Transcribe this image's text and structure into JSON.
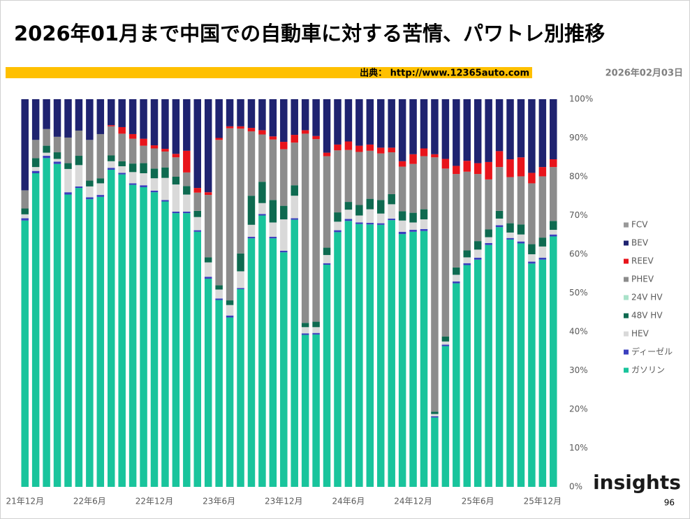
{
  "chart_data": {
    "type": "stacked_bar",
    "title": "2026年01月まで中国での自動車に対する苦情、パワトレ別推移",
    "categories": [
      "21年12月",
      null,
      null,
      null,
      null,
      null,
      "22年6月",
      null,
      null,
      null,
      null,
      null,
      "22年12月",
      null,
      null,
      null,
      null,
      null,
      "23年6月",
      null,
      null,
      null,
      null,
      null,
      "23年12月",
      null,
      null,
      null,
      null,
      null,
      "24年6月",
      null,
      null,
      null,
      null,
      null,
      "24年12月",
      null,
      null,
      null,
      null,
      null,
      "25年6月",
      null,
      null,
      null,
      null,
      null,
      "25年12月",
      null
    ],
    "series": [
      {
        "name": "ガソリン",
        "color": "#19c49c",
        "values": [
          68.7,
          80.9,
          84.8,
          83.3,
          75.4,
          77.1,
          74.2,
          74.8,
          81.8,
          80.6,
          77.9,
          77.3,
          76.0,
          73.6,
          70.6,
          70.6,
          65.8,
          53.7,
          48.2,
          43.7,
          51.0,
          64.1,
          70.0,
          64.1,
          60.5,
          68.9,
          39.2,
          39.3,
          57.3,
          65.7,
          68.6,
          67.8,
          67.7,
          67.6,
          68.8,
          65.2,
          65.8,
          66.0,
          17.9,
          36.3,
          52.5,
          57.2,
          58.6,
          62.4,
          67.0,
          63.8,
          62.8,
          57.6,
          58.6,
          64.6
        ]
      },
      {
        "name": "ディーゼル",
        "color": "#3b3fbe",
        "values": [
          0.6,
          0.6,
          0.6,
          0.6,
          0.6,
          0.4,
          0.5,
          0.5,
          0.5,
          0.4,
          0.4,
          0.5,
          0.4,
          0.4,
          0.4,
          0.4,
          0.4,
          0.5,
          0.4,
          0.5,
          0.3,
          0.4,
          0.4,
          0.4,
          0.4,
          0.4,
          0.4,
          0.4,
          0.4,
          0.5,
          0.5,
          0.4,
          0.4,
          0.4,
          0.4,
          0.6,
          0.5,
          0.5,
          0.3,
          0.4,
          0.5,
          0.5,
          0.5,
          0.5,
          0.5,
          0.4,
          0.5,
          0.5,
          0.5,
          0.5
        ]
      },
      {
        "name": "HEV",
        "color": "#d9d9d9",
        "values": [
          1.0,
          1.0,
          0.8,
          0.7,
          6.0,
          5.5,
          2.8,
          3.0,
          1.7,
          1.7,
          2.9,
          3.1,
          3.2,
          5.7,
          7.0,
          4.4,
          3.4,
          3.7,
          2.3,
          2.7,
          4.3,
          3.1,
          2.8,
          3.7,
          8.1,
          5.8,
          1.6,
          1.5,
          2.1,
          2.2,
          2.4,
          1.8,
          3.5,
          2.5,
          3.7,
          2.9,
          1.9,
          2.5,
          0.6,
          0.8,
          1.7,
          1.5,
          2.1,
          1.5,
          1.7,
          1.4,
          1.8,
          1.9,
          2.9,
          1.2
        ]
      },
      {
        "name": "48V HV",
        "color": "#0e6a50",
        "values": [
          1.5,
          2.3,
          1.8,
          1.7,
          1.5,
          2.4,
          1.5,
          1.3,
          1.5,
          1.3,
          2.2,
          2.6,
          2.5,
          2.7,
          2.0,
          2.2,
          1.6,
          1.3,
          1.1,
          1.2,
          4.6,
          7.5,
          5.5,
          5.8,
          3.5,
          2.7,
          1.1,
          1.4,
          1.9,
          2.4,
          2.0,
          2.7,
          2.7,
          3.5,
          2.6,
          2.4,
          2.5,
          2.6,
          0.6,
          1.3,
          1.9,
          1.8,
          2.2,
          2.0,
          2.0,
          2.4,
          2.6,
          2.6,
          2.3,
          2.3
        ]
      },
      {
        "name": "24V HV",
        "color": "#a9e2c9",
        "values": [
          0,
          0,
          0,
          0,
          0,
          0,
          0,
          0,
          0,
          0,
          0,
          0,
          0,
          0,
          0,
          0,
          0,
          0,
          0,
          0,
          0,
          0,
          0,
          0,
          0,
          0,
          0,
          0,
          0,
          0,
          0,
          0,
          0,
          0,
          0,
          0,
          0,
          0,
          0,
          0,
          0,
          0,
          0,
          0,
          0,
          0,
          0,
          0,
          0,
          0
        ]
      },
      {
        "name": "PHEV",
        "color": "#8c8c8c",
        "values": [
          4.7,
          4.7,
          4.3,
          4.0,
          6.6,
          6.5,
          10.5,
          11.4,
          7.5,
          7.1,
          6.4,
          4.5,
          5.2,
          4.1,
          5.0,
          3.5,
          4.7,
          16.1,
          37.5,
          44.4,
          32.2,
          16.6,
          12.2,
          15.6,
          14.6,
          11.0,
          48.8,
          47.1,
          23.6,
          16.0,
          13.4,
          13.7,
          12.4,
          12.0,
          10.8,
          11.5,
          12.6,
          13.7,
          65.6,
          43.3,
          24.1,
          20.3,
          17.3,
          12.9,
          11.3,
          11.9,
          12.4,
          15.7,
          15.8,
          13.9
        ]
      },
      {
        "name": "REEV",
        "color": "#e8141b",
        "values": [
          0,
          0,
          0,
          0,
          0,
          0,
          0,
          0,
          0.3,
          1.7,
          1.2,
          1.8,
          0.8,
          0.7,
          0.9,
          5.6,
          1.2,
          0.7,
          0.5,
          0.5,
          0.6,
          0.9,
          1.1,
          0.8,
          1.9,
          2.0,
          0.9,
          0.8,
          0.9,
          1.5,
          2.2,
          1.6,
          1.6,
          1.5,
          1.2,
          1.4,
          2.5,
          2.0,
          0.8,
          2.5,
          2.1,
          2.8,
          2.8,
          4.5,
          4.1,
          4.6,
          4.9,
          2.7,
          2.4,
          2.0
        ]
      },
      {
        "name": "BEV",
        "color": "#1f2370",
        "values": [
          23.5,
          10.5,
          7.7,
          9.7,
          9.9,
          8.1,
          10.5,
          9.0,
          6.7,
          7.2,
          9.0,
          10.2,
          11.9,
          12.8,
          14.1,
          13.3,
          22.9,
          24.0,
          10.0,
          7.0,
          7.0,
          7.4,
          8.0,
          9.6,
          11.0,
          9.2,
          8.0,
          9.5,
          13.8,
          11.7,
          10.9,
          12.0,
          11.7,
          12.5,
          12.5,
          16.0,
          14.2,
          12.7,
          14.2,
          15.4,
          17.2,
          15.9,
          16.5,
          16.2,
          13.4,
          15.5,
          15.0,
          19.0,
          17.5,
          15.5
        ]
      },
      {
        "name": "FCV",
        "color": "#999999",
        "values": [
          0,
          0,
          0,
          0,
          0,
          0,
          0,
          0,
          0,
          0,
          0,
          0,
          0,
          0,
          0,
          0,
          0,
          0,
          0,
          0,
          0,
          0,
          0,
          0,
          0,
          0,
          0,
          0,
          0,
          0,
          0,
          0,
          0,
          0,
          0,
          0,
          0,
          0,
          0,
          0,
          0,
          0,
          0,
          0,
          0,
          0,
          0,
          0,
          0,
          0
        ]
      }
    ],
    "ylim": [
      0,
      100
    ],
    "yticks": [
      {
        "value": 0,
        "label": "0%"
      },
      {
        "value": 10,
        "label": "10%"
      },
      {
        "value": 20,
        "label": "20%"
      },
      {
        "value": 30,
        "label": "30%"
      },
      {
        "value": 40,
        "label": "40%"
      },
      {
        "value": 50,
        "label": "50%"
      },
      {
        "value": 60,
        "label": "60%"
      },
      {
        "value": 70,
        "label": "70%"
      },
      {
        "value": 80,
        "label": "80%"
      },
      {
        "value": 90,
        "label": "90%"
      },
      {
        "value": 100,
        "label": "100%"
      }
    ],
    "grid": false,
    "legend_position": "right"
  },
  "source": "出典： http://www.12365auto.com",
  "date": "2026年02月03日",
  "logo": "insights",
  "page_number": "96"
}
